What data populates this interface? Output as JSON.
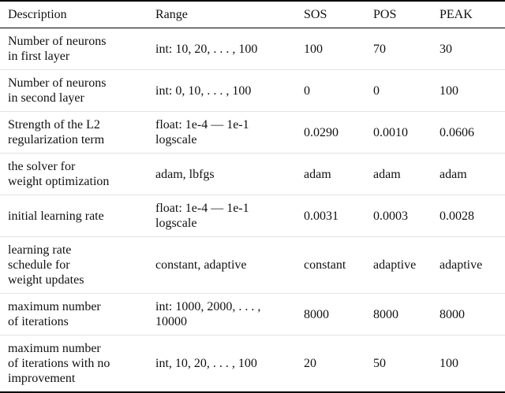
{
  "table": {
    "headers": {
      "description": "Description",
      "range": "Range",
      "sos": "SOS",
      "pos": "POS",
      "peak": "PEAK"
    },
    "rows": [
      {
        "description": "Number of neurons\nin first layer",
        "range": "int: 10, 20, . . . , 100",
        "sos": "100",
        "pos": "70",
        "peak": "30"
      },
      {
        "description": "Number of neurons\nin second layer",
        "range": "int: 0, 10, . . . , 100",
        "sos": "0",
        "pos": "0",
        "peak": "100"
      },
      {
        "description": "Strength of the L2\nregularization term",
        "range": "float: 1e-4 — 1e-1\nlogscale",
        "sos": "0.0290",
        "pos": "0.0010",
        "peak": "0.0606"
      },
      {
        "description": "the solver for\nweight optimization",
        "range": "adam, lbfgs",
        "sos": "adam",
        "pos": "adam",
        "peak": "adam"
      },
      {
        "description": "initial learning rate",
        "range": "float: 1e-4 — 1e-1\nlogscale",
        "sos": "0.0031",
        "pos": "0.0003",
        "peak": "0.0028"
      },
      {
        "description": "learning rate\nschedule for\nweight updates",
        "range": "constant, adaptive",
        "sos": "constant",
        "pos": "adaptive",
        "peak": "adaptive"
      },
      {
        "description": "maximum number\nof iterations",
        "range": "int: 1000, 2000, . . . ,\n10000",
        "sos": "8000",
        "pos": "8000",
        "peak": "8000"
      },
      {
        "description": "maximum number\nof iterations with no\nimprovement",
        "range": "int, 10, 20, . . . , 100",
        "sos": "20",
        "pos": "50",
        "peak": "100"
      }
    ]
  }
}
